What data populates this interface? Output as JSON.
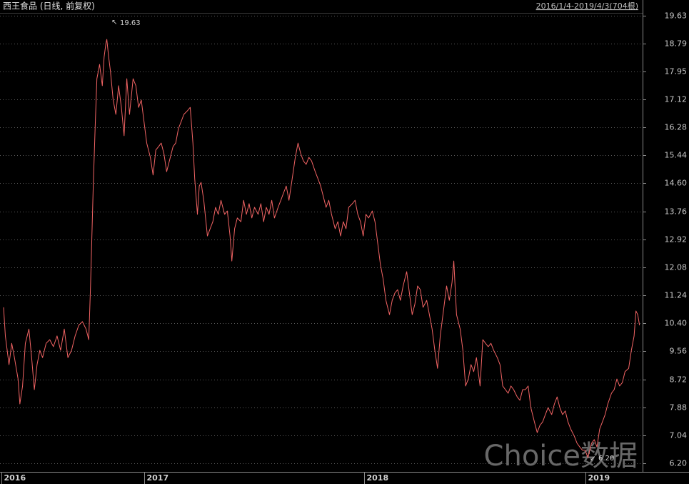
{
  "chart_data": {
    "type": "line",
    "title": "西王食品 (日线, 前复权)",
    "subtitle": "2016/1/4-2019/4/3(704根)",
    "max_label": "19.63",
    "min_label": "6.20",
    "watermark": "Choice数据",
    "color": "#f26464",
    "grid": true,
    "xlim": [
      0,
      703
    ],
    "xticks": [
      {
        "value": 0,
        "label": "2016"
      },
      {
        "value": 158,
        "label": "2017"
      },
      {
        "value": 400,
        "label": "2018"
      },
      {
        "value": 645,
        "label": "2019"
      }
    ],
    "ylim": [
      6.2,
      19.63
    ],
    "yticks": [
      {
        "value": 6.2,
        "label": "6.20"
      },
      7.04,
      7.88,
      8.72,
      9.56,
      {
        "value": 10.4,
        "label": "10.40"
      },
      11.24,
      12.08,
      12.92,
      13.76,
      {
        "value": 14.6,
        "label": "14.60"
      },
      15.44,
      16.28,
      17.12,
      17.95,
      18.79,
      19.63
    ],
    "x": [
      0,
      2,
      6,
      9,
      12,
      16,
      18,
      21,
      24,
      28,
      31,
      34,
      37,
      40,
      43,
      47,
      51,
      55,
      59,
      63,
      67,
      71,
      75,
      79,
      83,
      87,
      91,
      94,
      96,
      99,
      101,
      103,
      106,
      109,
      111,
      113,
      114,
      116,
      118,
      121,
      124,
      127,
      130,
      133,
      136,
      139,
      143,
      146,
      149,
      152,
      155,
      158,
      162,
      165,
      168,
      171,
      174,
      177,
      180,
      184,
      187,
      190,
      193,
      196,
      199,
      203,
      206,
      209,
      211,
      214,
      216,
      218,
      221,
      225,
      228,
      231,
      234,
      237,
      240,
      244,
      247,
      250,
      252,
      255,
      258,
      262,
      265,
      268,
      271,
      274,
      277,
      281,
      284,
      287,
      290,
      293,
      296,
      299,
      303,
      306,
      309,
      312,
      315,
      318,
      322,
      325,
      328,
      331,
      334,
      337,
      340,
      344,
      347,
      350,
      353,
      356,
      359,
      362,
      366,
      369,
      372,
      375,
      378,
      381,
      385,
      388,
      391,
      394,
      397,
      400,
      403,
      407,
      410,
      413,
      416,
      419,
      422,
      426,
      429,
      432,
      435,
      438,
      441,
      445,
      448,
      451,
      454,
      457,
      460,
      463,
      467,
      470,
      473,
      476,
      479,
      482,
      485,
      489,
      492,
      495,
      497,
      500,
      504,
      507,
      510,
      513,
      516,
      519,
      522,
      526,
      529,
      532,
      535,
      538,
      541,
      545,
      548,
      551,
      554,
      557,
      560,
      563,
      567,
      570,
      573,
      576,
      579,
      582,
      586,
      589,
      592,
      595,
      598,
      601,
      605,
      608,
      611,
      614,
      617,
      620,
      623,
      626,
      630,
      633,
      636,
      639,
      642,
      645,
      649,
      652,
      655,
      658,
      661,
      664,
      667,
      671,
      674,
      677,
      680,
      683,
      686,
      690,
      693,
      696,
      698,
      700,
      702
    ],
    "values": [
      10.88,
      10.02,
      9.16,
      9.8,
      9.37,
      8.73,
      7.98,
      8.52,
      9.8,
      10.23,
      9.37,
      8.41,
      9.16,
      9.59,
      9.37,
      9.8,
      9.91,
      9.7,
      10.02,
      9.59,
      10.23,
      9.37,
      9.59,
      10.02,
      10.34,
      10.45,
      10.23,
      9.91,
      11.52,
      14.52,
      16.24,
      17.74,
      18.17,
      17.53,
      18.39,
      18.81,
      18.92,
      18.39,
      17.96,
      17.1,
      16.67,
      17.53,
      16.88,
      16.03,
      17.74,
      16.67,
      17.74,
      17.53,
      16.88,
      17.1,
      16.45,
      15.81,
      15.38,
      14.85,
      15.6,
      15.7,
      15.81,
      15.49,
      14.95,
      15.38,
      15.7,
      15.81,
      16.24,
      16.45,
      16.67,
      16.78,
      16.88,
      15.81,
      14.74,
      13.67,
      14.52,
      14.63,
      14.09,
      13.02,
      13.24,
      13.45,
      13.88,
      13.67,
      14.09,
      13.67,
      13.77,
      13.02,
      12.27,
      13.24,
      13.56,
      13.45,
      14.09,
      13.67,
      13.99,
      13.56,
      13.88,
      13.67,
      13.99,
      13.45,
      13.88,
      13.67,
      14.09,
      13.56,
      13.88,
      14.09,
      14.31,
      14.52,
      14.09,
      14.63,
      15.38,
      15.81,
      15.49,
      15.27,
      15.17,
      15.38,
      15.27,
      14.95,
      14.74,
      14.52,
      14.2,
      13.88,
      14.09,
      13.67,
      13.24,
      13.45,
      13.02,
      13.45,
      13.24,
      13.88,
      13.99,
      14.09,
      13.67,
      13.45,
      13.02,
      13.67,
      13.56,
      13.77,
      13.45,
      12.81,
      12.16,
      11.73,
      11.09,
      10.66,
      11.09,
      11.31,
      11.41,
      11.09,
      11.52,
      11.95,
      11.31,
      10.66,
      10.98,
      11.52,
      11.41,
      10.88,
      11.09,
      10.66,
      10.23,
      9.59,
      9.05,
      10.02,
      10.66,
      11.52,
      11.09,
      11.63,
      12.27,
      10.66,
      10.23,
      9.59,
      8.52,
      8.73,
      9.16,
      8.95,
      9.37,
      8.52,
      9.91,
      9.8,
      9.7,
      9.8,
      9.59,
      9.37,
      9.16,
      8.52,
      8.41,
      8.3,
      8.52,
      8.41,
      8.19,
      8.09,
      8.41,
      8.41,
      8.52,
      7.87,
      7.44,
      7.12,
      7.34,
      7.44,
      7.66,
      7.87,
      7.66,
      7.98,
      8.19,
      7.87,
      7.66,
      7.77,
      7.44,
      7.23,
      7.01,
      6.8,
      6.69,
      6.59,
      6.59,
      6.37,
      6.8,
      6.91,
      6.69,
      7.23,
      7.44,
      7.66,
      7.98,
      8.3,
      8.41,
      8.73,
      8.52,
      8.62,
      8.95,
      9.05,
      9.59,
      10.02,
      10.77,
      10.66,
      10.34
    ]
  }
}
